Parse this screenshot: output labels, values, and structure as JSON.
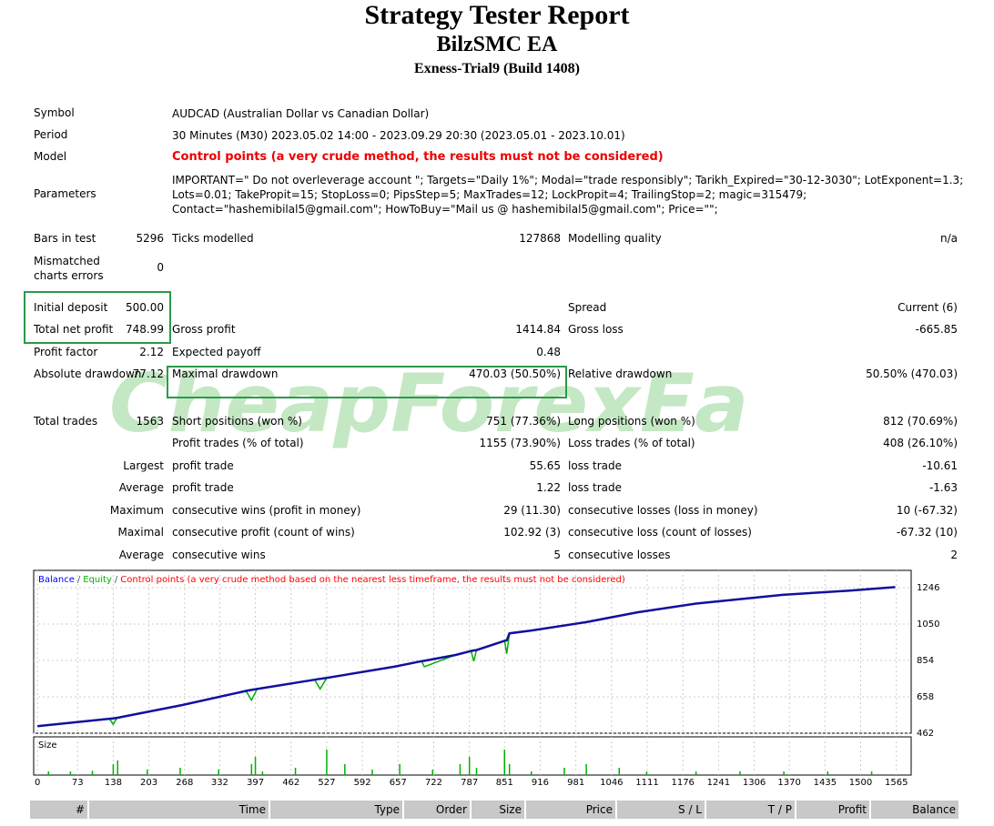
{
  "header": {
    "title": "Strategy Tester Report",
    "subtitle": "BilzSMC EA",
    "server": "Exness-Trial9 (Build 1408)"
  },
  "info": [
    {
      "label": "Symbol",
      "value": "AUDCAD (Australian Dollar vs Canadian Dollar)"
    },
    {
      "label": "Period",
      "value": "30 Minutes (M30) 2023.05.02 14:00 - 2023.09.29 20:30 (2023.05.01 - 2023.10.01)"
    },
    {
      "label": "Model",
      "value": "Control points (a very crude method, the results must not be considered)"
    },
    {
      "label": "Parameters",
      "value": "IMPORTANT=\" Do not overleverage account \"; Targets=\"Daily 1%\"; Modal=\"trade responsibly\"; Tarikh_Expired=\"30-12-3030\"; LotExponent=1.3; Lots=0.01; TakePropit=15; StopLoss=0; PipsStep=5; MaxTrades=12; LockPropit=4; TrailingStop=2; magic=315479; Contact=\"hashemibilal5@gmail.com\"; HowToBuy=\"Mail us @ hashemibilal5@gmail.com\"; Price=\"\";"
    }
  ],
  "stats": [
    {
      "l1": "Bars in test",
      "v1": "5296",
      "l2": "Ticks modelled",
      "v2": "127868",
      "l3": "Modelling quality",
      "v3": "n/a"
    },
    {
      "l1": "Mismatched charts errors",
      "v1": "0"
    },
    {
      "l1": "Initial deposit",
      "v1": "500.00",
      "l3": "Spread",
      "v3": "Current (6)"
    },
    {
      "l1": "Total net profit",
      "v1": "748.99",
      "l2": "Gross profit",
      "v2": "1414.84",
      "l3": "Gross loss",
      "v3": "-665.85"
    },
    {
      "l1": "Profit factor",
      "v1": "2.12",
      "l2": "Expected payoff",
      "v2": "0.48"
    },
    {
      "l1": "Absolute drawdown",
      "v1": "77.12",
      "l2": "Maximal drawdown",
      "v2": "470.03 (50.50%)",
      "l3": "Relative drawdown",
      "v3": "50.50% (470.03)"
    },
    {
      "l1": "Total trades",
      "v1": "1563",
      "l2": "Short positions (won %)",
      "v2": "751 (77.36%)",
      "l3": "Long positions (won %)",
      "v3": "812 (70.69%)"
    },
    {
      "l2": "Profit trades (% of total)",
      "v2": "1155 (73.90%)",
      "l3": "Loss trades (% of total)",
      "v3": "408 (26.10%)"
    },
    {
      "r1": "Largest",
      "l2": "profit trade",
      "v2": "55.65",
      "l3": "loss trade",
      "v3": "-10.61"
    },
    {
      "r1": "Average",
      "l2": "profit trade",
      "v2": "1.22",
      "l3": "loss trade",
      "v3": "-1.63"
    },
    {
      "r1": "Maximum",
      "l2": "consecutive wins (profit in money)",
      "v2": "29 (11.30)",
      "l3": "consecutive losses (loss in money)",
      "v3": "10 (-67.32)"
    },
    {
      "r1": "Maximal",
      "l2": "consecutive profit (count of wins)",
      "v2": "102.92 (3)",
      "l3": "consecutive loss (count of losses)",
      "v3": "-67.32 (10)"
    },
    {
      "r1": "Average",
      "l2": "consecutive wins",
      "v2": "5",
      "l3": "consecutive losses",
      "v3": "2"
    }
  ],
  "watermark": "CheapForexEa",
  "chart_data": {
    "type": "line",
    "legend": [
      {
        "text": "Balance",
        "color": "#0000ff"
      },
      {
        "text": "/",
        "color": "#555555"
      },
      {
        "text": "Equity",
        "color": "#00b000"
      },
      {
        "text": "/",
        "color": "#555555"
      },
      {
        "text": "Control points (a very crude method based on the nearest less timeframe, the results must not be considered)",
        "color": "#ff0000"
      }
    ],
    "x": [
      0,
      131,
      138,
      145,
      264,
      380,
      390,
      400,
      505,
      515,
      527,
      650,
      700,
      705,
      761,
      790,
      795,
      800,
      851,
      855,
      860,
      900,
      1000,
      1093,
      1200,
      1358,
      1480,
      1563
    ],
    "series": [
      {
        "name": "Balance",
        "color": "#1010a0",
        "values": [
          500,
          540,
          542,
          545,
          614,
          690,
          695,
          700,
          750,
          755,
          760,
          820,
          850,
          852,
          883,
          905,
          908,
          910,
          960,
          962,
          1000,
          1015,
          1060,
          1113,
          1160,
          1207,
          1230,
          1249
        ]
      },
      {
        "name": "Equity",
        "color": "#00b000",
        "values": [
          500,
          540,
          510,
          545,
          614,
          690,
          640,
          700,
          750,
          700,
          760,
          820,
          850,
          820,
          883,
          905,
          850,
          910,
          960,
          890,
          1000,
          1015,
          1060,
          1113,
          1160,
          1207,
          1230,
          1249
        ]
      }
    ],
    "xlim": [
      -7,
      1592
    ],
    "ylim": [
      462,
      1339
    ],
    "yticks": [
      462,
      658,
      854,
      1050,
      1246
    ],
    "xticks": [
      0,
      73,
      138,
      203,
      268,
      332,
      397,
      462,
      527,
      592,
      657,
      722,
      787,
      851,
      916,
      981,
      1046,
      1111,
      1176,
      1241,
      1306,
      1370,
      1435,
      1500,
      1565
    ],
    "size_label": "Size",
    "size_color": "#00b000",
    "size_x": [
      20,
      60,
      100,
      138,
      146,
      200,
      260,
      330,
      390,
      397,
      410,
      470,
      527,
      560,
      610,
      660,
      720,
      770,
      787,
      800,
      851,
      860,
      900,
      960,
      1000,
      1060,
      1110,
      1200,
      1280,
      1360,
      1440,
      1520
    ],
    "size_values": [
      0.01,
      0.01,
      0.012,
      0.03,
      0.04,
      0.015,
      0.02,
      0.015,
      0.03,
      0.05,
      0.01,
      0.02,
      0.07,
      0.03,
      0.015,
      0.03,
      0.015,
      0.03,
      0.05,
      0.02,
      0.07,
      0.03,
      0.01,
      0.02,
      0.03,
      0.02,
      0.01,
      0.01,
      0.01,
      0.01,
      0.01,
      0.01
    ],
    "size_ylim": [
      0,
      0.08
    ]
  },
  "table": {
    "columns": [
      "#",
      "Time",
      "Type",
      "Order",
      "Size",
      "Price",
      "S / L",
      "T / P",
      "Profit",
      "Balance"
    ]
  }
}
